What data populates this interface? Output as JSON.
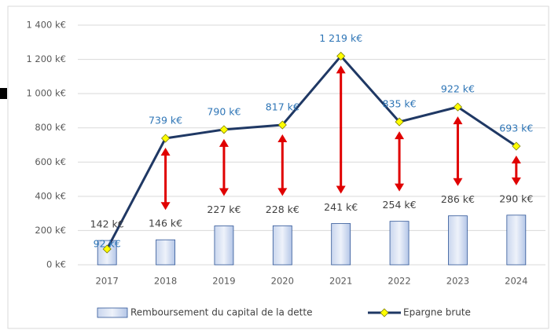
{
  "chart_data": {
    "type": "bar_line",
    "categories": [
      "2017",
      "2018",
      "2019",
      "2020",
      "2021",
      "2022",
      "2023",
      "2024"
    ],
    "series": [
      {
        "name": "Remboursement du capital de la dette",
        "type": "bar",
        "color": "#2f5597",
        "values": [
          142,
          146,
          227,
          228,
          241,
          254,
          286,
          290
        ],
        "value_labels": [
          "142 k€",
          "146 k€",
          "227 k€",
          "228 k€",
          "241 k€",
          "254 k€",
          "286 k€",
          "290 k€"
        ]
      },
      {
        "name": "Epargne brute",
        "type": "line",
        "color": "#1f3864",
        "marker_color": "#ffff00",
        "values": [
          92,
          739,
          790,
          817,
          1219,
          835,
          922,
          693
        ],
        "value_labels": [
          "92 k€",
          "739 k€",
          "790 k€",
          "817 k€",
          "1 219 k€",
          "835 k€",
          "922 k€",
          "693 k€"
        ]
      }
    ],
    "ylim": [
      0,
      1400
    ],
    "yticks": [
      {
        "value": 0,
        "label": "0 k€"
      },
      {
        "value": 200,
        "label": "200 k€"
      },
      {
        "value": 400,
        "label": "400 k€"
      },
      {
        "value": 600,
        "label": "600 k€"
      },
      {
        "value": 800,
        "label": "800 k€"
      },
      {
        "value": 1000,
        "label": "1 000 k€"
      },
      {
        "value": 1200,
        "label": "1 200 k€"
      },
      {
        "value": 1400,
        "label": "1 400 k€"
      }
    ],
    "grid": true,
    "legend": "bottom"
  }
}
